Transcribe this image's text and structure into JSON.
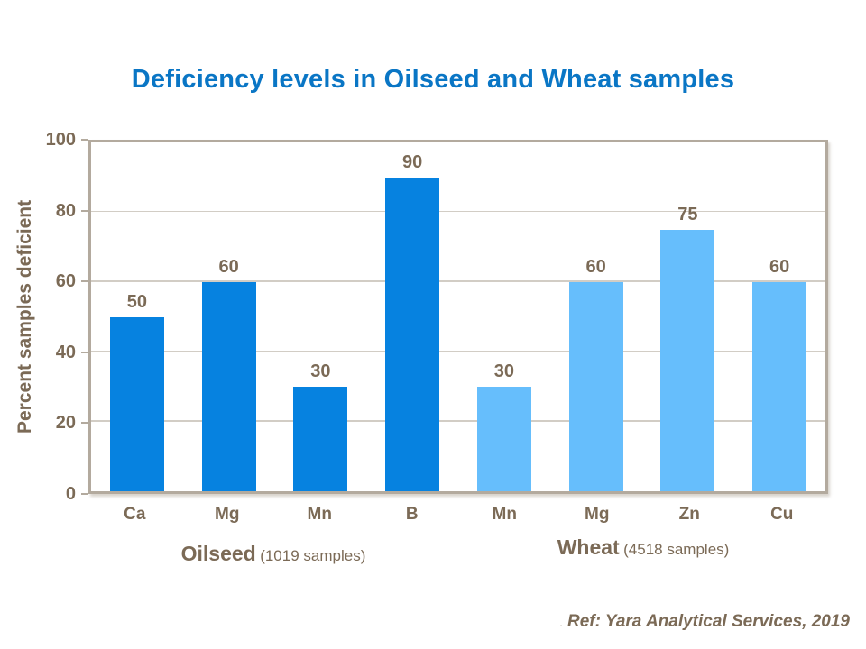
{
  "title": "Deficiency levels in Oilseed and Wheat samples",
  "footer": {
    "prefix": ".",
    "text": "Ref: Yara Analytical Services, 2019"
  },
  "colors": {
    "title_blue": "#0a76c5",
    "oilseed_bar": "#0682e0",
    "wheat_bar": "#66befc",
    "text_brown": "#7b6a56",
    "axis_border": "#b3aa9e",
    "gridline": "#d2cdc5"
  },
  "chart_data": {
    "type": "bar",
    "title": "Deficiency levels in Oilseed and Wheat samples",
    "xlabel": "",
    "ylabel": "Percent samples deficient",
    "ylim": [
      0,
      100
    ],
    "yticks": [
      0,
      20,
      40,
      60,
      80,
      100
    ],
    "grid": true,
    "legend_position": "none",
    "categories": [
      "Ca",
      "Mg",
      "Mn",
      "B",
      "Mn",
      "Mg",
      "Zn",
      "Cu"
    ],
    "values": [
      50,
      60,
      30,
      90,
      30,
      60,
      75,
      60
    ],
    "groups": [
      {
        "name": "Oilseed",
        "sublabel": "(1019 samples)",
        "color": "#0682e0",
        "categories": [
          "Ca",
          "Mg",
          "Mn",
          "B"
        ],
        "values": [
          50,
          60,
          30,
          90
        ]
      },
      {
        "name": "Wheat",
        "sublabel": "(4518 samples)",
        "color": "#66befc",
        "categories": [
          "Mn",
          "Mg",
          "Zn",
          "Cu"
        ],
        "values": [
          30,
          60,
          75,
          60
        ]
      }
    ]
  }
}
